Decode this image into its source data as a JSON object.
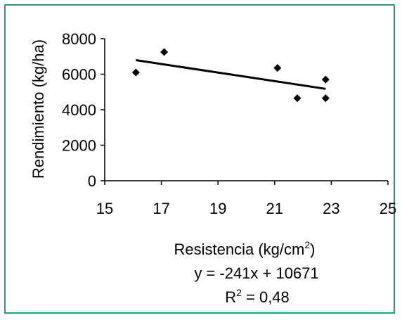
{
  "colors": {
    "frame": "#2f9a7c",
    "marker": "#000000",
    "trendline": "#000000"
  },
  "chart_data": {
    "type": "scatter",
    "title": "",
    "xlabel": "Resistencia (kg/cm2)",
    "xlabel_main": "Resistencia (kg/cm",
    "xlabel_sup": "2",
    "xlabel_tail": ")",
    "ylabel": "Rendimiento (kg/ha)",
    "xlim": [
      15,
      25
    ],
    "ylim": [
      0,
      8000
    ],
    "x_ticks": [
      15,
      17,
      19,
      21,
      23,
      25
    ],
    "y_ticks": [
      0,
      2000,
      4000,
      6000,
      8000
    ],
    "grid": false,
    "marker": "diamond",
    "points": [
      {
        "x": 16.1,
        "y": 6100
      },
      {
        "x": 17.1,
        "y": 7250
      },
      {
        "x": 21.1,
        "y": 6350
      },
      {
        "x": 21.8,
        "y": 4650
      },
      {
        "x": 22.8,
        "y": 4650
      },
      {
        "x": 22.8,
        "y": 5700
      }
    ],
    "trendline": {
      "slope": -241,
      "intercept": 10671,
      "x_start": 16.1,
      "x_end": 22.8
    },
    "equation": "y = -241x + 10671",
    "r2_prefix": "R",
    "r2_sup": "2",
    "r2_value": " = 0,48"
  }
}
